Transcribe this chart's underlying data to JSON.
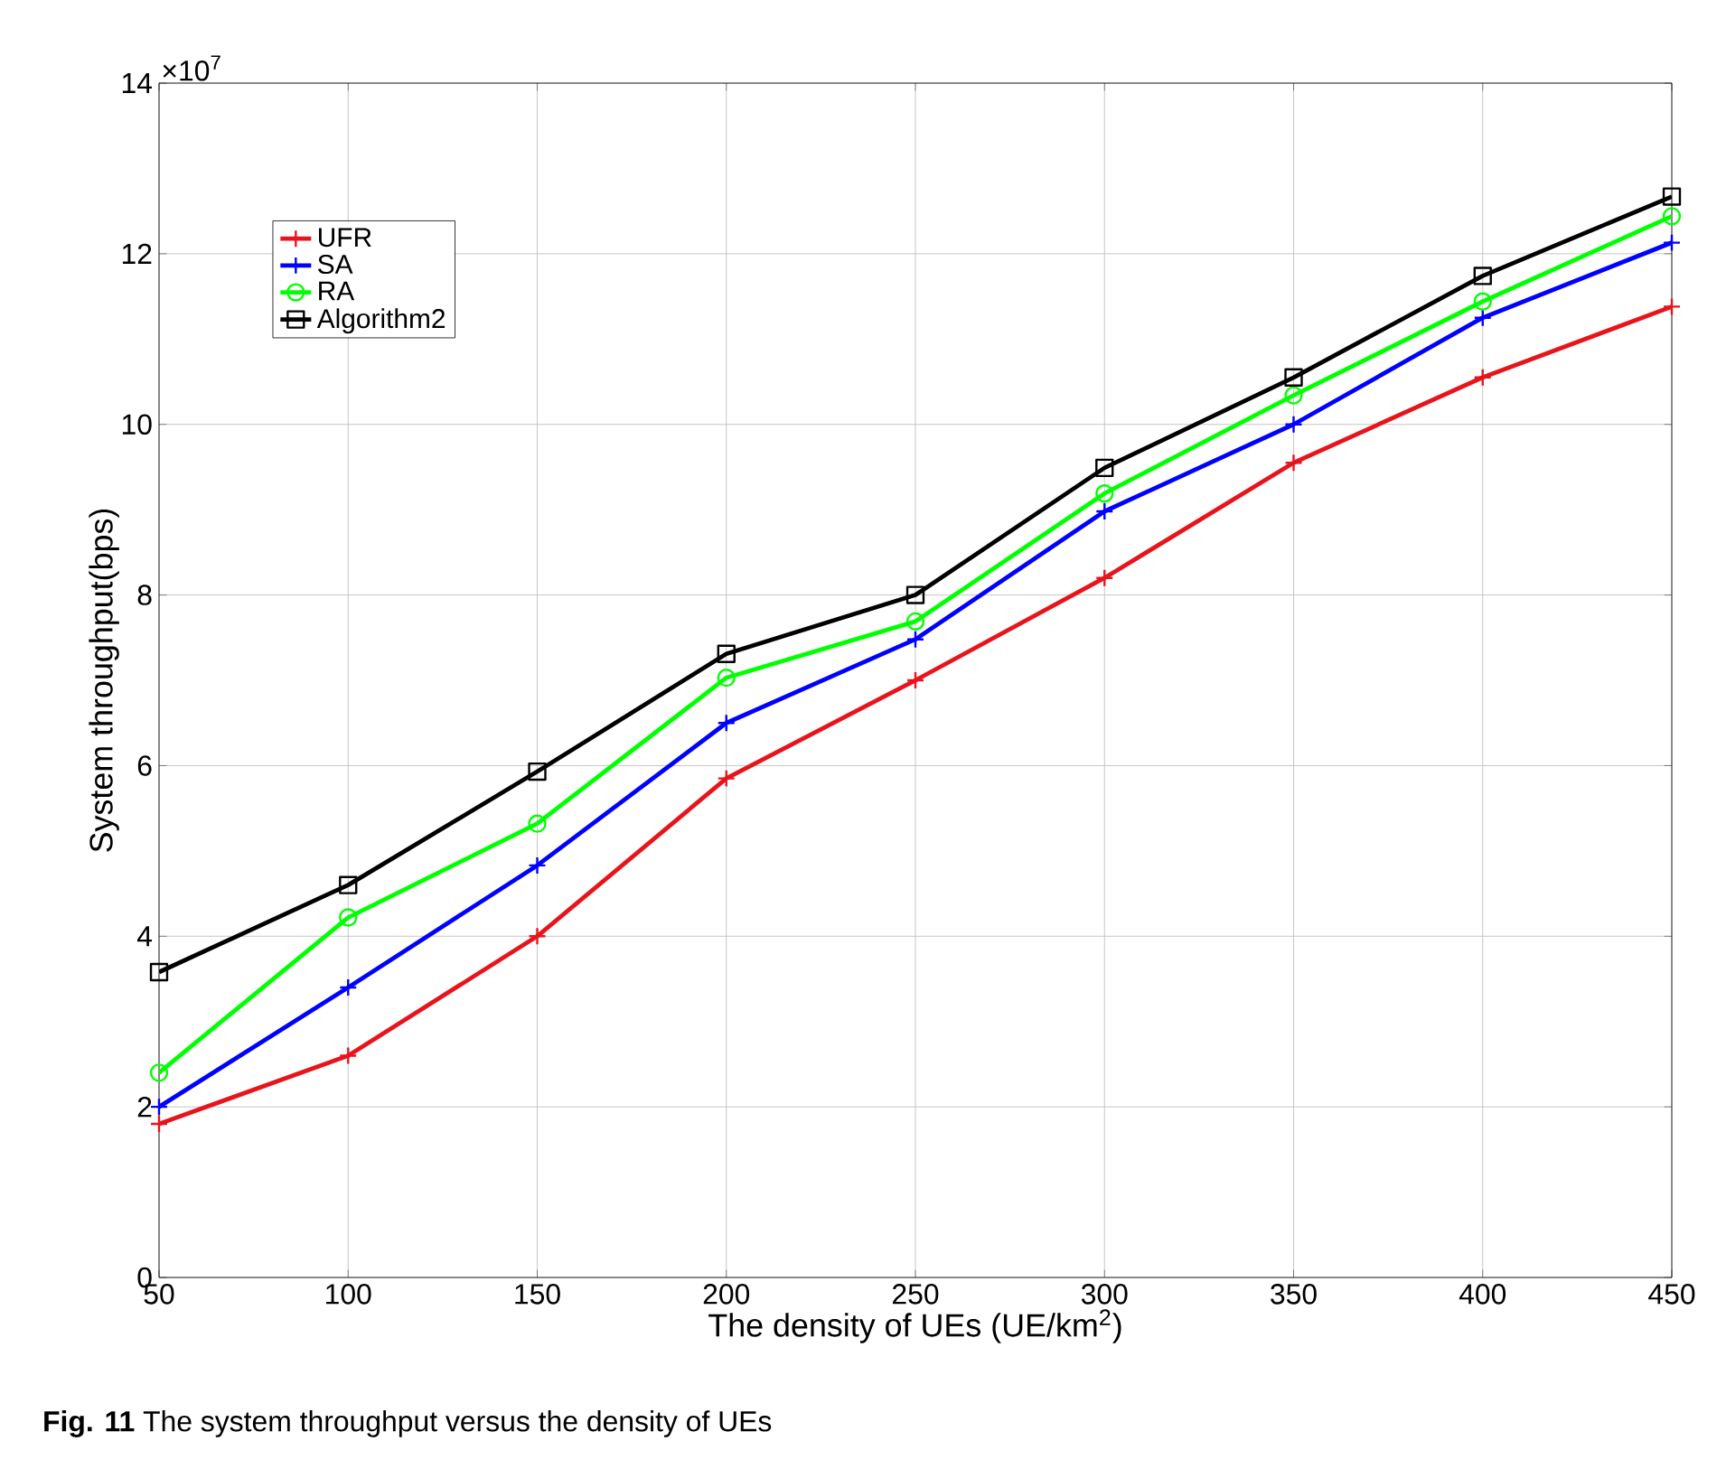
{
  "chart_data": {
    "type": "line",
    "xlabel": "The density of UEs   (UE/km$^{2}$)",
    "ylabel": "System throughput(bps)",
    "x": [
      50,
      100,
      150,
      200,
      250,
      300,
      350,
      400,
      450
    ],
    "series": [
      {
        "name": "UFR",
        "color": "#e8141c",
        "marker": "cross",
        "values": [
          1.8,
          2.6,
          4.0,
          5.85,
          7.0,
          8.2,
          9.55,
          10.55,
          11.38
        ]
      },
      {
        "name": "SA",
        "color": "#0000ff",
        "marker": "cross",
        "values": [
          2.0,
          3.4,
          4.83,
          6.5,
          7.48,
          8.98,
          10.0,
          11.25,
          12.13
        ]
      },
      {
        "name": "RA",
        "color": "#00ff00",
        "marker": "circle",
        "values": [
          2.4,
          4.22,
          5.32,
          7.03,
          7.69,
          9.19,
          10.34,
          11.44,
          12.44
        ]
      },
      {
        "name": "Algorithm2",
        "color": "#000000",
        "marker": "square",
        "values": [
          3.58,
          4.6,
          5.93,
          7.31,
          8.0,
          9.49,
          10.55,
          11.74,
          12.67
        ]
      }
    ],
    "xlim": [
      50,
      450
    ],
    "xticks": [
      50,
      100,
      150,
      200,
      250,
      300,
      350,
      400,
      450
    ],
    "ylim": [
      0,
      14
    ],
    "yticks": [
      0,
      2,
      4,
      6,
      8,
      10,
      12,
      14
    ],
    "grid": true,
    "legend": "top left",
    "annotations": [
      "×10$^{7}$",
      "**Fig. 11** The system throughput versus the density of UEs"
    ]
  }
}
